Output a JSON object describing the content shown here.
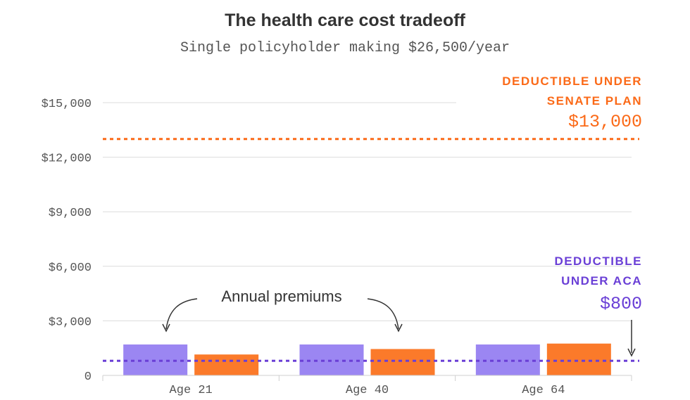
{
  "chart_data": {
    "type": "bar",
    "title": "The health care cost tradeoff",
    "subtitle": "Single policyholder making $26,500/year",
    "xlabel": "",
    "ylabel": "",
    "ylim": [
      0,
      15000
    ],
    "yticks": [
      0,
      3000,
      6000,
      9000,
      12000,
      15000
    ],
    "ytick_labels": [
      "0",
      "$3,000",
      "$6,000",
      "$9,000",
      "$12,000",
      "$15,000"
    ],
    "categories": [
      "Age 21",
      "Age 40",
      "Age 64"
    ],
    "series": [
      {
        "values": [
          1700,
          1700,
          1700
        ],
        "color": "#9b86f2"
      },
      {
        "values": [
          1150,
          1450,
          1750
        ],
        "color": "#fb7a2a"
      }
    ],
    "grid": true,
    "reference_lines": [
      {
        "value": 13000,
        "color": "#fb6a18",
        "label_lines": [
          "DEDUCTIBLE UNDER",
          "SENATE PLAN"
        ],
        "value_label": "$13,000"
      },
      {
        "value": 800,
        "color": "#6a3fd6",
        "label_lines": [
          "DEDUCTIBLE",
          "UNDER ACA"
        ],
        "value_label": "$800"
      }
    ],
    "annotations": [
      {
        "text": "Annual premiums"
      }
    ]
  }
}
